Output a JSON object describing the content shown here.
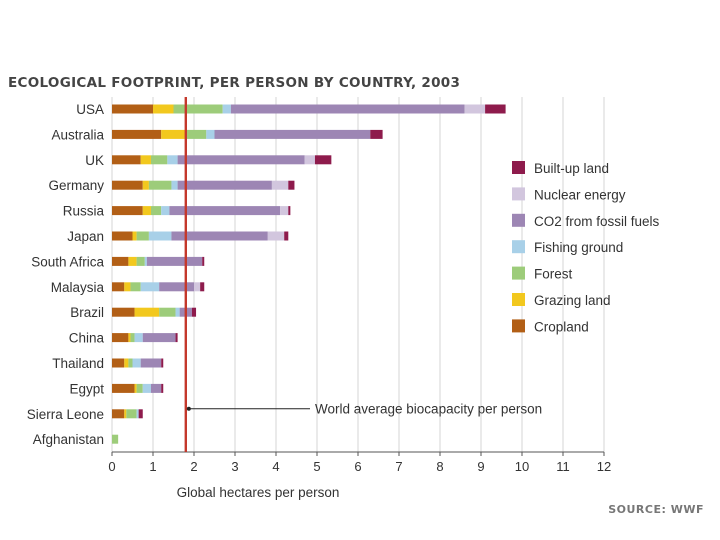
{
  "chart_data": {
    "type": "bar",
    "stacked": true,
    "orientation": "horizontal",
    "title": "ECOLOGICAL FOOTPRINT, PER PERSON BY COUNTRY, 2003",
    "xlabel": "Global hectares per person",
    "ylabel": "",
    "xlim": [
      0,
      12
    ],
    "xticks": [
      0,
      1,
      2,
      3,
      4,
      5,
      6,
      7,
      8,
      9,
      10,
      11,
      12
    ],
    "grid": true,
    "legend_position": "right",
    "categories": [
      "USA",
      "Australia",
      "UK",
      "Germany",
      "Russia",
      "Japan",
      "South Africa",
      "Malaysia",
      "Brazil",
      "China",
      "Thailand",
      "Egypt",
      "Sierra Leone",
      "Afghanistan"
    ],
    "series": [
      {
        "name": "Cropland",
        "color": "#b25f16",
        "values": [
          1.0,
          1.2,
          0.7,
          0.75,
          0.75,
          0.5,
          0.4,
          0.3,
          0.55,
          0.4,
          0.3,
          0.55,
          0.3,
          0.0
        ]
      },
      {
        "name": "Grazing land",
        "color": "#f2c81e",
        "values": [
          0.5,
          0.6,
          0.25,
          0.15,
          0.2,
          0.1,
          0.2,
          0.15,
          0.6,
          0.05,
          0.1,
          0.05,
          0.05,
          0.0
        ]
      },
      {
        "name": "Forest",
        "color": "#9dcc7a",
        "values": [
          1.2,
          0.5,
          0.4,
          0.55,
          0.25,
          0.3,
          0.2,
          0.25,
          0.4,
          0.1,
          0.1,
          0.15,
          0.25,
          0.15
        ]
      },
      {
        "name": "Fishing ground",
        "color": "#a8d0e8",
        "values": [
          0.2,
          0.2,
          0.25,
          0.15,
          0.2,
          0.55,
          0.05,
          0.45,
          0.1,
          0.2,
          0.2,
          0.2,
          0.05,
          0.0
        ]
      },
      {
        "name": "CO2 from fossil fuels",
        "color": "#9d86b4",
        "values": [
          5.7,
          3.8,
          3.1,
          2.3,
          2.7,
          2.35,
          1.35,
          0.85,
          0.3,
          0.8,
          0.5,
          0.25,
          0.0,
          0.0
        ]
      },
      {
        "name": "Nuclear energy",
        "color": "#d2c6de",
        "values": [
          0.5,
          0.0,
          0.25,
          0.4,
          0.2,
          0.4,
          0.0,
          0.15,
          0.0,
          0.0,
          0.0,
          0.0,
          0.0,
          0.0
        ]
      },
      {
        "name": "Built-up land",
        "color": "#8e1b4c",
        "values": [
          0.5,
          0.3,
          0.4,
          0.15,
          0.05,
          0.1,
          0.05,
          0.1,
          0.1,
          0.05,
          0.05,
          0.05,
          0.1,
          0.0
        ]
      }
    ],
    "legend_order": [
      "Built-up land",
      "Nuclear energy",
      "CO2 from fossil fuels",
      "Fishing ground",
      "Forest",
      "Grazing land",
      "Cropland"
    ],
    "reference_line": {
      "value": 1.8,
      "color": "#c4382b",
      "label": "World average biocapacity per person"
    }
  },
  "source": "SOURCE: WWF"
}
